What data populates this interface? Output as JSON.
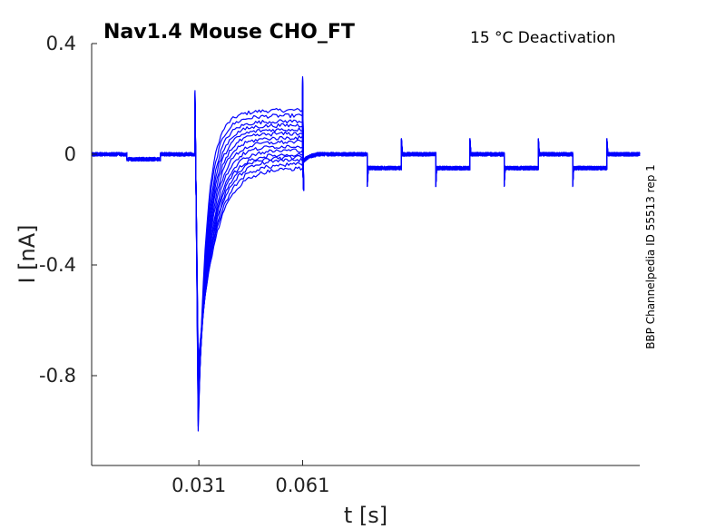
{
  "chart_data": {
    "type": "line",
    "title": "Nav1.4  Mouse  CHO_FT",
    "condition": "15 °C  Deactivation",
    "side_label": "BBP Channelpedia ID 55513 rep 1",
    "xlabel": "t [s]",
    "ylabel": "I [nA]",
    "xlim": [
      0.0,
      0.1585
    ],
    "ylim": [
      -1.12,
      0.4
    ],
    "x_ticks": [
      0.031,
      0.061
    ],
    "x_tick_labels": [
      "0.031",
      "0.061"
    ],
    "y_ticks": [
      0.4,
      0,
      -0.4,
      -0.8
    ],
    "y_tick_labels": [
      "0.4",
      "0",
      "-0.4",
      "-0.8"
    ],
    "line_color": "#0000ff",
    "grid": false,
    "protocol": {
      "baseline_segments": [
        {
          "t0": 0.0,
          "t1": 0.0102,
          "i": 0.0
        },
        {
          "t0": 0.0102,
          "t1": 0.0199,
          "i": -0.018
        },
        {
          "t0": 0.0199,
          "t1": 0.0299,
          "i": 0.0
        },
        {
          "t0": 0.061,
          "t1": 0.0797,
          "i": 0.0
        },
        {
          "t0": 0.0797,
          "t1": 0.0896,
          "i": -0.05
        },
        {
          "t0": 0.0896,
          "t1": 0.0995,
          "i": 0.0
        },
        {
          "t0": 0.0995,
          "t1": 0.1094,
          "i": -0.05
        },
        {
          "t0": 0.1094,
          "t1": 0.1193,
          "i": 0.0
        },
        {
          "t0": 0.1193,
          "t1": 0.1292,
          "i": -0.05
        },
        {
          "t0": 0.1292,
          "t1": 0.1391,
          "i": 0.0
        },
        {
          "t0": 0.1391,
          "t1": 0.149,
          "i": -0.05
        },
        {
          "t0": 0.149,
          "t1": 0.1585,
          "i": 0.0
        }
      ],
      "step_start": 0.0299,
      "step_end": 0.061,
      "peak_min": -1.0,
      "peak_time": 0.0308,
      "sweep_plateaus": [
        0.16,
        0.14,
        0.12,
        0.105,
        0.09,
        0.075,
        0.06,
        0.045,
        0.03,
        0.015,
        0.0,
        -0.01,
        -0.02,
        -0.035,
        -0.05
      ],
      "noise_amplitude": 0.007
    }
  }
}
